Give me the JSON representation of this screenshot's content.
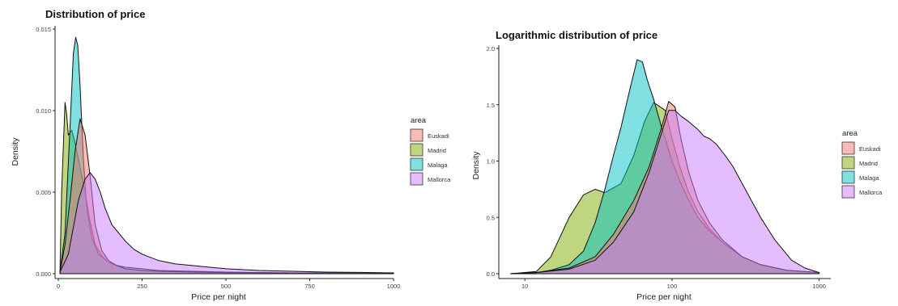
{
  "colors": {
    "Euskadi": "#f8766d",
    "Madrid": "#7cae00",
    "Malaga": "#00bfc4",
    "Mallorca": "#c77cff",
    "fill_opacity": 0.5
  },
  "chart_data": [
    {
      "type": "area",
      "title": "Distribution of price",
      "xlabel": "Price per night",
      "ylabel": "Density",
      "xlim": [
        0,
        1000
      ],
      "ylim": [
        0,
        0.015
      ],
      "x_ticks": [
        0,
        250,
        500,
        750,
        1000
      ],
      "x_tick_labels": [
        "0",
        "250",
        "500",
        "750",
        "1000"
      ],
      "y_ticks": [
        0,
        0.005,
        0.01,
        0.015
      ],
      "y_tick_labels": [
        "0.000",
        "0.005",
        "0.010",
        "0.015"
      ],
      "x_scale": "linear",
      "grid": false,
      "legend": {
        "title": "area",
        "position": "right",
        "entries": [
          "Euskadi",
          "Madrid",
          "Malaga",
          "Mallorca"
        ]
      },
      "series": [
        {
          "name": "Euskadi",
          "x": [
            5,
            20,
            35,
            50,
            65,
            80,
            95,
            110,
            130,
            150,
            175,
            200,
            250,
            300,
            400,
            500,
            700,
            1000
          ],
          "y": [
            0.0001,
            0.0018,
            0.0045,
            0.0075,
            0.0095,
            0.0085,
            0.006,
            0.003,
            0.0014,
            0.0008,
            0.0005,
            0.0003,
            0.0002,
            0.00015,
            0.0001,
            7e-05,
            4e-05,
            2e-05
          ]
        },
        {
          "name": "Madrid",
          "x": [
            5,
            10,
            20,
            25,
            30,
            40,
            50,
            65,
            80,
            95,
            110,
            130,
            150,
            175,
            200,
            250,
            300,
            400,
            500,
            700,
            1000
          ],
          "y": [
            0.0001,
            0.005,
            0.0105,
            0.0098,
            0.0085,
            0.0088,
            0.008,
            0.0065,
            0.005,
            0.0032,
            0.0018,
            0.0011,
            0.0007,
            0.0005,
            0.0003,
            0.0002,
            0.00015,
            0.0001,
            8e-05,
            5e-05,
            3e-05
          ]
        },
        {
          "name": "Malaga",
          "x": [
            5,
            20,
            35,
            45,
            52,
            58,
            65,
            75,
            85,
            100,
            120,
            150,
            175,
            200,
            250,
            300,
            400,
            500,
            700,
            1000
          ],
          "y": [
            0.0001,
            0.0025,
            0.009,
            0.0135,
            0.0145,
            0.014,
            0.0115,
            0.007,
            0.004,
            0.0022,
            0.0012,
            0.0007,
            0.0005,
            0.0004,
            0.0003,
            0.0002,
            0.00015,
            0.0001,
            5e-05,
            3e-05
          ]
        },
        {
          "name": "Mallorca",
          "x": [
            5,
            30,
            60,
            80,
            95,
            110,
            125,
            140,
            160,
            180,
            200,
            225,
            250,
            300,
            350,
            400,
            450,
            500,
            600,
            700,
            800,
            900,
            1000
          ],
          "y": [
            0.0001,
            0.0012,
            0.0045,
            0.0058,
            0.0062,
            0.0058,
            0.005,
            0.004,
            0.003,
            0.0025,
            0.002,
            0.0015,
            0.0012,
            0.0008,
            0.0006,
            0.0005,
            0.0004,
            0.0003,
            0.0002,
            0.00015,
            0.0001,
            8e-05,
            5e-05
          ]
        }
      ]
    },
    {
      "type": "area",
      "title": "Logarithmic distribution of price",
      "xlabel": "Price per night",
      "ylabel": "Density",
      "xlim": [
        7,
        1200
      ],
      "ylim": [
        0,
        2.0
      ],
      "x_ticks": [
        10,
        100,
        1000
      ],
      "x_tick_labels": [
        "10",
        "100",
        "1000"
      ],
      "y_ticks": [
        0,
        0.5,
        1.0,
        1.5,
        2.0
      ],
      "y_tick_labels": [
        "0.0",
        "0.5",
        "1.0",
        "1.5",
        "2.0"
      ],
      "x_scale": "log",
      "grid": false,
      "legend": {
        "title": "area",
        "position": "right",
        "entries": [
          "Euskadi",
          "Madrid",
          "Malaga",
          "Mallorca"
        ]
      },
      "series": [
        {
          "name": "Euskadi",
          "x": [
            8,
            12,
            20,
            30,
            40,
            55,
            70,
            85,
            95,
            105,
            115,
            130,
            150,
            180,
            220,
            300,
            400,
            600,
            1000
          ],
          "y": [
            0.0,
            0.01,
            0.05,
            0.15,
            0.35,
            0.65,
            0.95,
            1.3,
            1.53,
            1.48,
            1.2,
            0.9,
            0.65,
            0.45,
            0.3,
            0.15,
            0.08,
            0.03,
            0.01
          ]
        },
        {
          "name": "Madrid",
          "x": [
            8,
            12,
            15,
            20,
            25,
            30,
            35,
            45,
            55,
            65,
            75,
            90,
            100,
            115,
            130,
            150,
            180,
            220,
            300,
            400,
            600,
            1000
          ],
          "y": [
            0.0,
            0.02,
            0.15,
            0.5,
            0.7,
            0.75,
            0.72,
            0.8,
            1.05,
            1.35,
            1.52,
            1.45,
            1.2,
            0.92,
            0.72,
            0.55,
            0.4,
            0.28,
            0.15,
            0.08,
            0.03,
            0.01
          ]
        },
        {
          "name": "Malaga",
          "x": [
            8,
            12,
            15,
            20,
            25,
            30,
            35,
            40,
            45,
            52,
            58,
            63,
            68,
            75,
            85,
            100,
            115,
            130,
            150,
            180,
            220,
            300,
            400,
            600,
            1000
          ],
          "y": [
            0.0,
            0.01,
            0.03,
            0.08,
            0.2,
            0.45,
            0.75,
            1.05,
            1.3,
            1.65,
            1.9,
            1.88,
            1.72,
            1.55,
            1.3,
            1.0,
            0.8,
            0.65,
            0.5,
            0.38,
            0.28,
            0.15,
            0.08,
            0.03,
            0.01
          ]
        },
        {
          "name": "Mallorca",
          "x": [
            8,
            12,
            20,
            30,
            40,
            55,
            70,
            85,
            95,
            105,
            115,
            130,
            150,
            165,
            180,
            200,
            230,
            260,
            300,
            400,
            500,
            650,
            800,
            1000
          ],
          "y": [
            0.0,
            0.01,
            0.04,
            0.12,
            0.28,
            0.55,
            0.9,
            1.25,
            1.45,
            1.45,
            1.4,
            1.35,
            1.28,
            1.22,
            1.2,
            1.15,
            1.05,
            0.95,
            0.8,
            0.5,
            0.3,
            0.12,
            0.05,
            0.01
          ]
        }
      ]
    }
  ]
}
